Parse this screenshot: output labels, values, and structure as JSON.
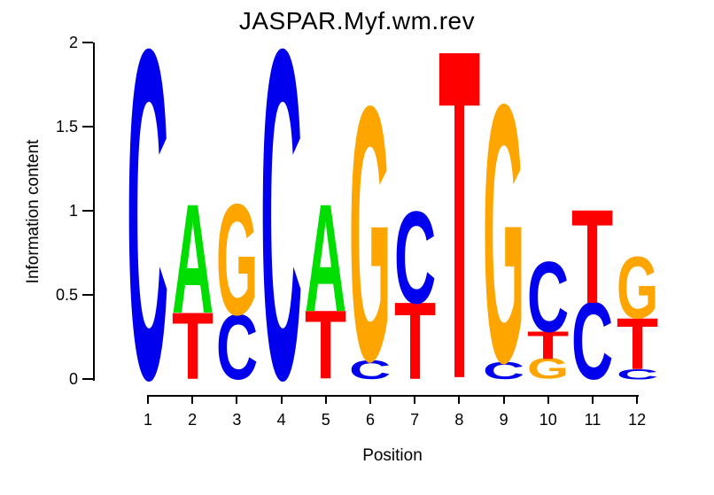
{
  "chart_data": {
    "type": "sequence_logo",
    "title": "JASPAR.Myf.wm.rev",
    "xlabel": "Position",
    "ylabel": "Information content",
    "ylim": [
      0,
      2
    ],
    "yticks": [
      0,
      0.5,
      1,
      1.5,
      2
    ],
    "ytick_labels": [
      "0",
      "0.5",
      "1",
      "1.5",
      "2"
    ],
    "xtick_labels": [
      "1",
      "2",
      "3",
      "4",
      "5",
      "6",
      "7",
      "8",
      "9",
      "10",
      "11",
      "12"
    ],
    "base_colors": {
      "A": "#00DD00",
      "C": "#0000EE",
      "G": "#FFA500",
      "T": "#FF0000"
    },
    "positions": [
      {
        "position": 1,
        "stack": [
          {
            "base": "C",
            "bits": 1.93
          }
        ]
      },
      {
        "position": 2,
        "stack": [
          {
            "base": "T",
            "bits": 0.39
          },
          {
            "base": "A",
            "bits": 0.64
          }
        ]
      },
      {
        "position": 3,
        "stack": [
          {
            "base": "C",
            "bits": 0.38
          },
          {
            "base": "G",
            "bits": 0.65
          }
        ]
      },
      {
        "position": 4,
        "stack": [
          {
            "base": "C",
            "bits": 1.93
          }
        ]
      },
      {
        "position": 5,
        "stack": [
          {
            "base": "T",
            "bits": 0.4
          },
          {
            "base": "A",
            "bits": 0.63
          }
        ]
      },
      {
        "position": 6,
        "stack": [
          {
            "base": "C",
            "bits": 0.11
          },
          {
            "base": "G",
            "bits": 1.49
          }
        ]
      },
      {
        "position": 7,
        "stack": [
          {
            "base": "T",
            "bits": 0.45
          },
          {
            "base": "C",
            "bits": 0.54
          }
        ]
      },
      {
        "position": 8,
        "stack": [
          {
            "base": "T",
            "bits": 1.93
          }
        ]
      },
      {
        "position": 9,
        "stack": [
          {
            "base": "C",
            "bits": 0.1
          },
          {
            "base": "G",
            "bits": 1.51
          }
        ]
      },
      {
        "position": 10,
        "stack": [
          {
            "base": "G",
            "bits": 0.12
          },
          {
            "base": "T",
            "bits": 0.16
          },
          {
            "base": "C",
            "bits": 0.41
          }
        ]
      },
      {
        "position": 11,
        "stack": [
          {
            "base": "C",
            "bits": 0.45
          },
          {
            "base": "T",
            "bits": 0.55
          }
        ]
      },
      {
        "position": 12,
        "stack": [
          {
            "base": "C",
            "bits": 0.06
          },
          {
            "base": "T",
            "bits": 0.3
          },
          {
            "base": "G",
            "bits": 0.36
          }
        ]
      }
    ]
  }
}
